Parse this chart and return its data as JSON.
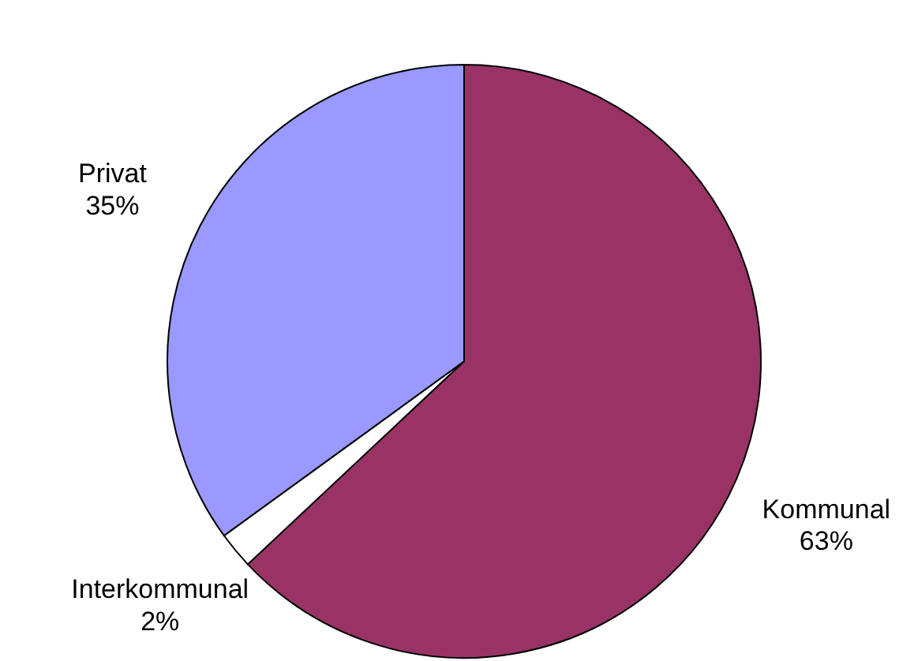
{
  "chart_data": {
    "type": "pie",
    "categories": [
      "Kommunal",
      "Interkommunal",
      "Privat"
    ],
    "values": [
      63,
      2,
      35
    ],
    "colors": [
      "#993366",
      "#ffffff",
      "#9999ff"
    ],
    "value_labels": [
      "63%",
      "2%",
      "35%"
    ]
  }
}
